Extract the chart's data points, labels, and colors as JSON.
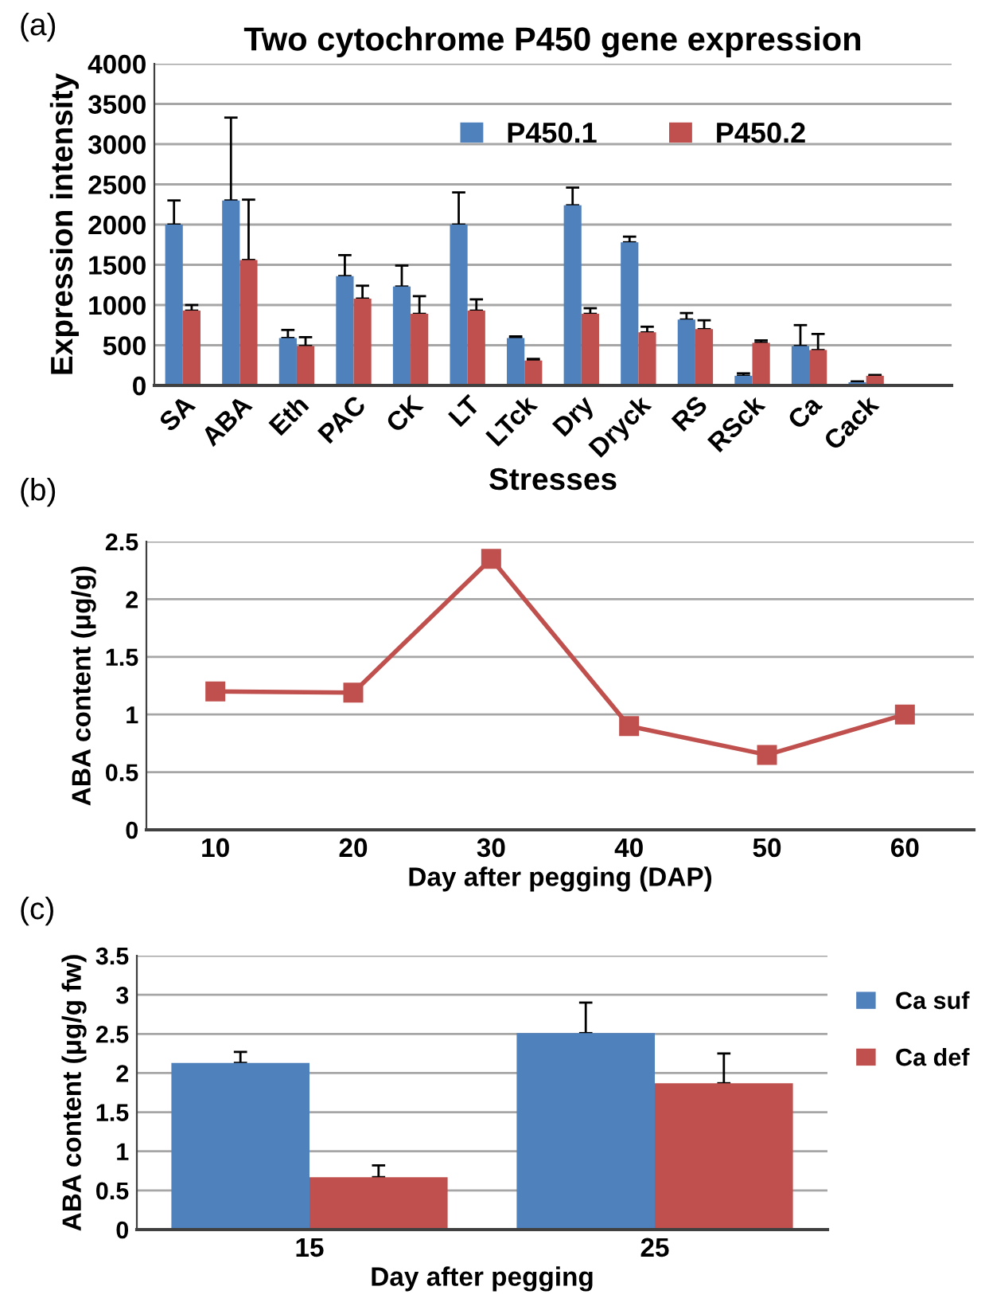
{
  "chart_data": [
    {
      "type": "bar",
      "title": "Two cytochrome P450 gene expression",
      "xlabel": "Stresses",
      "ylabel": "Expression intensity",
      "annotations": [
        "(a)"
      ],
      "categories": [
        "SA",
        "ABA",
        "Eth",
        "PAC",
        "CK",
        "LT",
        "LTck",
        "Dry",
        "Dryck",
        "RS",
        "RSck",
        "Ca",
        "Cack",
        null
      ],
      "series": [
        {
          "name": "P450.1",
          "color": "#4f81bd",
          "values": [
            2000,
            2300,
            590,
            1360,
            1230,
            2000,
            590,
            2240,
            1780,
            820,
            120,
            490,
            40,
            null
          ],
          "errors": [
            [
              2000,
              2300
            ],
            [
              2300,
              3330
            ],
            [
              590,
              690
            ],
            [
              1360,
              1620
            ],
            [
              1230,
              1490
            ],
            [
              2000,
              2400
            ],
            [
              590,
              610
            ],
            [
              2240,
              2460
            ],
            [
              1780,
              1850
            ],
            [
              820,
              900
            ],
            [
              120,
              150
            ],
            [
              490,
              750
            ],
            [
              40,
              50
            ],
            null
          ]
        },
        {
          "name": "P450.2",
          "color": "#c0504d",
          "values": [
            930,
            1560,
            490,
            1080,
            890,
            930,
            310,
            890,
            660,
            700,
            530,
            440,
            120,
            null
          ],
          "errors": [
            [
              930,
              1000
            ],
            [
              1560,
              2310
            ],
            [
              490,
              600
            ],
            [
              1080,
              1240
            ],
            [
              890,
              1110
            ],
            [
              930,
              1070
            ],
            [
              310,
              330
            ],
            [
              890,
              960
            ],
            [
              660,
              730
            ],
            [
              700,
              810
            ],
            [
              530,
              560
            ],
            [
              440,
              640
            ],
            [
              120,
              130
            ],
            null
          ]
        }
      ],
      "ylim": [
        0,
        4000
      ],
      "yticks": [
        0,
        500,
        1000,
        1500,
        2000,
        2500,
        3000,
        3500,
        4000
      ],
      "grid": "y",
      "legend": "top right"
    },
    {
      "type": "line",
      "xlabel": "Day after pegging (DAP)",
      "ylabel": "ABA content (μg/g)",
      "annotations": [
        "(b)"
      ],
      "categories": [
        "10",
        "20",
        "30",
        "40",
        "50",
        "60"
      ],
      "series": [
        {
          "color": "#c0504d",
          "values": [
            1.2,
            1.19,
            2.35,
            0.9,
            0.65,
            1.0
          ]
        }
      ],
      "ylim": [
        0,
        2.5
      ],
      "yticks": [
        0,
        0.5,
        1,
        1.5,
        2,
        2.5
      ],
      "grid": "y",
      "marker": "square",
      "line_style": "solid"
    },
    {
      "type": "bar",
      "xlabel": "Day after pegging",
      "ylabel": "ABA content (μg/g fw)",
      "annotations": [
        "(c)"
      ],
      "categories": [
        "15",
        "25"
      ],
      "series": [
        {
          "name": "Ca suf",
          "color": "#4f81bd",
          "values": [
            2.13,
            2.51
          ],
          "errors": [
            [
              2.13,
              2.27
            ],
            [
              2.51,
              2.9
            ]
          ]
        },
        {
          "name": "Ca def",
          "color": "#c0504d",
          "values": [
            0.67,
            1.87
          ],
          "errors": [
            [
              0.67,
              0.82
            ],
            [
              1.87,
              2.25
            ]
          ]
        }
      ],
      "ylim": [
        0,
        3.5
      ],
      "yticks": [
        0,
        0.5,
        1,
        1.5,
        2,
        2.5,
        3,
        3.5
      ],
      "grid": "y",
      "legend": "right"
    }
  ]
}
